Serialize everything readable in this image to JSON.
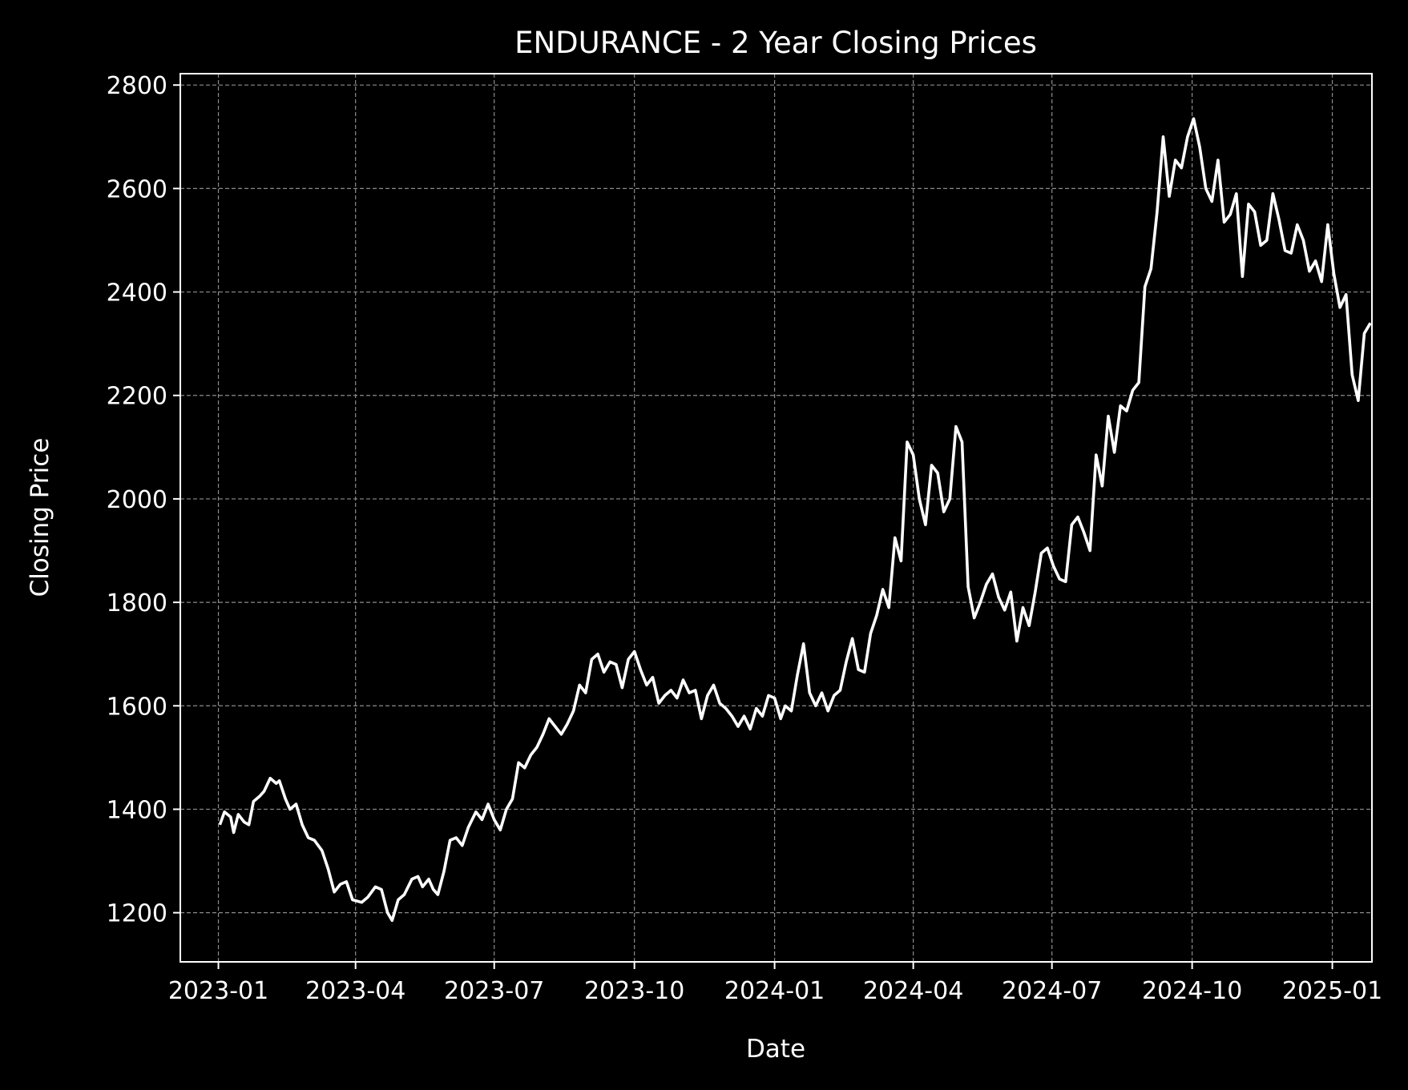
{
  "chart_data": {
    "type": "line",
    "title": "ENDURANCE - 2 Year Closing Prices",
    "xlabel": "Date",
    "ylabel": "Closing Price",
    "xlim": [
      "2022-12-07",
      "2025-01-27"
    ],
    "ylim": [
      1105,
      2822
    ],
    "x_ticks": [
      {
        "date": "2023-01-01",
        "label": "2023-01"
      },
      {
        "date": "2023-04-01",
        "label": "2023-04"
      },
      {
        "date": "2023-07-01",
        "label": "2023-07"
      },
      {
        "date": "2023-10-01",
        "label": "2023-10"
      },
      {
        "date": "2024-01-01",
        "label": "2024-01"
      },
      {
        "date": "2024-04-01",
        "label": "2024-04"
      },
      {
        "date": "2024-07-01",
        "label": "2024-07"
      },
      {
        "date": "2024-10-01",
        "label": "2024-10"
      },
      {
        "date": "2025-01-01",
        "label": "2025-01"
      }
    ],
    "y_ticks": [
      1200,
      1400,
      1600,
      1800,
      2000,
      2200,
      2400,
      2600,
      2800
    ],
    "grid": true,
    "grid_style": "dashed",
    "colors": {
      "background": "#000000",
      "line": "#ffffff",
      "grid": "#8c8c8c",
      "text": "#ffffff"
    },
    "series": [
      {
        "points": [
          [
            "2023-01-02",
            1370
          ],
          [
            "2023-01-05",
            1395
          ],
          [
            "2023-01-09",
            1385
          ],
          [
            "2023-01-11",
            1355
          ],
          [
            "2023-01-14",
            1390
          ],
          [
            "2023-01-18",
            1375
          ],
          [
            "2023-01-21",
            1370
          ],
          [
            "2023-01-24",
            1415
          ],
          [
            "2023-01-28",
            1425
          ],
          [
            "2023-01-31",
            1435
          ],
          [
            "2023-02-04",
            1460
          ],
          [
            "2023-02-08",
            1450
          ],
          [
            "2023-02-10",
            1455
          ],
          [
            "2023-02-14",
            1420
          ],
          [
            "2023-02-17",
            1400
          ],
          [
            "2023-02-21",
            1410
          ],
          [
            "2023-02-25",
            1370
          ],
          [
            "2023-03-01",
            1345
          ],
          [
            "2023-03-05",
            1340
          ],
          [
            "2023-03-10",
            1320
          ],
          [
            "2023-03-14",
            1285
          ],
          [
            "2023-03-18",
            1240
          ],
          [
            "2023-03-22",
            1255
          ],
          [
            "2023-03-26",
            1260
          ],
          [
            "2023-03-30",
            1225
          ],
          [
            "2023-04-05",
            1220
          ],
          [
            "2023-04-09",
            1230
          ],
          [
            "2023-04-14",
            1250
          ],
          [
            "2023-04-18",
            1245
          ],
          [
            "2023-04-22",
            1200
          ],
          [
            "2023-04-25",
            1185
          ],
          [
            "2023-04-29",
            1225
          ],
          [
            "2023-05-03",
            1235
          ],
          [
            "2023-05-08",
            1265
          ],
          [
            "2023-05-12",
            1270
          ],
          [
            "2023-05-15",
            1250
          ],
          [
            "2023-05-19",
            1265
          ],
          [
            "2023-05-22",
            1245
          ],
          [
            "2023-05-25",
            1235
          ],
          [
            "2023-05-29",
            1280
          ],
          [
            "2023-06-02",
            1340
          ],
          [
            "2023-06-06",
            1345
          ],
          [
            "2023-06-10",
            1330
          ],
          [
            "2023-06-14",
            1365
          ],
          [
            "2023-06-19",
            1395
          ],
          [
            "2023-06-23",
            1380
          ],
          [
            "2023-06-27",
            1410
          ],
          [
            "2023-07-01",
            1380
          ],
          [
            "2023-07-05",
            1360
          ],
          [
            "2023-07-09",
            1400
          ],
          [
            "2023-07-13",
            1420
          ],
          [
            "2023-07-17",
            1490
          ],
          [
            "2023-07-21",
            1480
          ],
          [
            "2023-07-25",
            1505
          ],
          [
            "2023-07-29",
            1520
          ],
          [
            "2023-08-02",
            1545
          ],
          [
            "2023-08-06",
            1575
          ],
          [
            "2023-08-10",
            1560
          ],
          [
            "2023-08-14",
            1545
          ],
          [
            "2023-08-18",
            1565
          ],
          [
            "2023-08-22",
            1590
          ],
          [
            "2023-08-26",
            1640
          ],
          [
            "2023-08-30",
            1625
          ],
          [
            "2023-09-03",
            1690
          ],
          [
            "2023-09-07",
            1700
          ],
          [
            "2023-09-11",
            1665
          ],
          [
            "2023-09-15",
            1685
          ],
          [
            "2023-09-19",
            1680
          ],
          [
            "2023-09-23",
            1635
          ],
          [
            "2023-09-27",
            1690
          ],
          [
            "2023-10-01",
            1705
          ],
          [
            "2023-10-05",
            1670
          ],
          [
            "2023-10-09",
            1640
          ],
          [
            "2023-10-13",
            1655
          ],
          [
            "2023-10-17",
            1605
          ],
          [
            "2023-10-21",
            1620
          ],
          [
            "2023-10-25",
            1630
          ],
          [
            "2023-10-29",
            1615
          ],
          [
            "2023-11-02",
            1650
          ],
          [
            "2023-11-06",
            1625
          ],
          [
            "2023-11-10",
            1630
          ],
          [
            "2023-11-14",
            1575
          ],
          [
            "2023-11-18",
            1620
          ],
          [
            "2023-11-22",
            1640
          ],
          [
            "2023-11-26",
            1605
          ],
          [
            "2023-11-30",
            1595
          ],
          [
            "2023-12-04",
            1580
          ],
          [
            "2023-12-08",
            1560
          ],
          [
            "2023-12-12",
            1580
          ],
          [
            "2023-12-16",
            1555
          ],
          [
            "2023-12-20",
            1595
          ],
          [
            "2023-12-24",
            1580
          ],
          [
            "2023-12-28",
            1620
          ],
          [
            "2024-01-01",
            1615
          ],
          [
            "2024-01-05",
            1575
          ],
          [
            "2024-01-08",
            1600
          ],
          [
            "2024-01-12",
            1590
          ],
          [
            "2024-01-16",
            1660
          ],
          [
            "2024-01-20",
            1720
          ],
          [
            "2024-01-24",
            1625
          ],
          [
            "2024-01-28",
            1600
          ],
          [
            "2024-02-01",
            1625
          ],
          [
            "2024-02-05",
            1590
          ],
          [
            "2024-02-09",
            1620
          ],
          [
            "2024-02-13",
            1630
          ],
          [
            "2024-02-17",
            1685
          ],
          [
            "2024-02-21",
            1730
          ],
          [
            "2024-02-25",
            1670
          ],
          [
            "2024-02-29",
            1665
          ],
          [
            "2024-03-04",
            1740
          ],
          [
            "2024-03-08",
            1775
          ],
          [
            "2024-03-12",
            1825
          ],
          [
            "2024-03-16",
            1790
          ],
          [
            "2024-03-20",
            1925
          ],
          [
            "2024-03-24",
            1880
          ],
          [
            "2024-03-28",
            2110
          ],
          [
            "2024-04-01",
            2085
          ],
          [
            "2024-04-05",
            2000
          ],
          [
            "2024-04-09",
            1950
          ],
          [
            "2024-04-13",
            2065
          ],
          [
            "2024-04-17",
            2050
          ],
          [
            "2024-04-21",
            1975
          ],
          [
            "2024-04-25",
            2000
          ],
          [
            "2024-04-29",
            2140
          ],
          [
            "2024-05-03",
            2110
          ],
          [
            "2024-05-07",
            1830
          ],
          [
            "2024-05-11",
            1770
          ],
          [
            "2024-05-15",
            1800
          ],
          [
            "2024-05-19",
            1835
          ],
          [
            "2024-05-23",
            1855
          ],
          [
            "2024-05-27",
            1810
          ],
          [
            "2024-05-31",
            1785
          ],
          [
            "2024-06-04",
            1820
          ],
          [
            "2024-06-08",
            1725
          ],
          [
            "2024-06-12",
            1790
          ],
          [
            "2024-06-16",
            1755
          ],
          [
            "2024-06-20",
            1820
          ],
          [
            "2024-06-24",
            1895
          ],
          [
            "2024-06-28",
            1905
          ],
          [
            "2024-07-02",
            1870
          ],
          [
            "2024-07-06",
            1845
          ],
          [
            "2024-07-10",
            1840
          ],
          [
            "2024-07-14",
            1950
          ],
          [
            "2024-07-18",
            1965
          ],
          [
            "2024-07-22",
            1935
          ],
          [
            "2024-07-26",
            1900
          ],
          [
            "2024-07-30",
            2085
          ],
          [
            "2024-08-03",
            2025
          ],
          [
            "2024-08-07",
            2160
          ],
          [
            "2024-08-11",
            2090
          ],
          [
            "2024-08-15",
            2180
          ],
          [
            "2024-08-19",
            2170
          ],
          [
            "2024-08-23",
            2210
          ],
          [
            "2024-08-27",
            2225
          ],
          [
            "2024-08-31",
            2410
          ],
          [
            "2024-09-04",
            2445
          ],
          [
            "2024-09-08",
            2555
          ],
          [
            "2024-09-12",
            2700
          ],
          [
            "2024-09-16",
            2585
          ],
          [
            "2024-09-20",
            2655
          ],
          [
            "2024-09-24",
            2640
          ],
          [
            "2024-09-28",
            2700
          ],
          [
            "2024-10-02",
            2735
          ],
          [
            "2024-10-06",
            2680
          ],
          [
            "2024-10-10",
            2600
          ],
          [
            "2024-10-14",
            2575
          ],
          [
            "2024-10-18",
            2655
          ],
          [
            "2024-10-22",
            2535
          ],
          [
            "2024-10-26",
            2550
          ],
          [
            "2024-10-30",
            2590
          ],
          [
            "2024-11-03",
            2430
          ],
          [
            "2024-11-07",
            2570
          ],
          [
            "2024-11-11",
            2555
          ],
          [
            "2024-11-15",
            2490
          ],
          [
            "2024-11-19",
            2500
          ],
          [
            "2024-11-23",
            2590
          ],
          [
            "2024-11-27",
            2540
          ],
          [
            "2024-12-01",
            2480
          ],
          [
            "2024-12-05",
            2475
          ],
          [
            "2024-12-09",
            2530
          ],
          [
            "2024-12-13",
            2500
          ],
          [
            "2024-12-17",
            2440
          ],
          [
            "2024-12-21",
            2460
          ],
          [
            "2024-12-25",
            2420
          ],
          [
            "2024-12-29",
            2530
          ],
          [
            "2025-01-02",
            2435
          ],
          [
            "2025-01-06",
            2370
          ],
          [
            "2025-01-10",
            2395
          ],
          [
            "2025-01-14",
            2240
          ],
          [
            "2025-01-18",
            2190
          ],
          [
            "2025-01-22",
            2320
          ],
          [
            "2025-01-26",
            2340
          ]
        ]
      }
    ]
  }
}
